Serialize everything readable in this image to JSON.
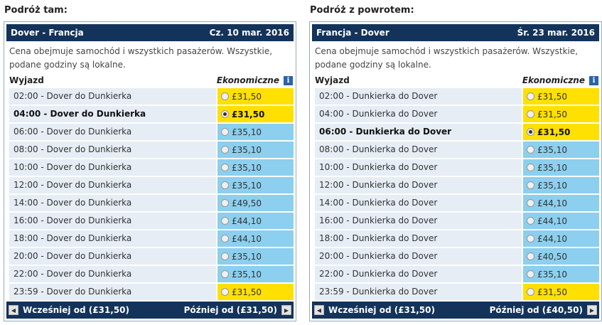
{
  "outbound": {
    "section_title": "Podróż tam:",
    "route": "Dover - Francja",
    "date": "Cz. 10 mar. 2016",
    "note": "Cena obejmuje samochód i wszystkich pasażerów. Wszystkie, podane godziny są lokalne.",
    "col_departure": "Wyjazd",
    "col_class": "Ekonomiczne",
    "info_icon": "i",
    "rows": [
      {
        "label": "02:00 - Dover do Dunkierka",
        "price": "£31,50",
        "cheap": true,
        "selected": false
      },
      {
        "label": "04:00 - Dover do Dunkierka",
        "price": "£31,50",
        "cheap": true,
        "selected": true
      },
      {
        "label": "06:00 - Dover do Dunkierka",
        "price": "£35,10",
        "cheap": false,
        "selected": false
      },
      {
        "label": "08:00 - Dover do Dunkierka",
        "price": "£35,10",
        "cheap": false,
        "selected": false
      },
      {
        "label": "10:00 - Dover do Dunkierka",
        "price": "£35,10",
        "cheap": false,
        "selected": false
      },
      {
        "label": "12:00 - Dover do Dunkierka",
        "price": "£35,10",
        "cheap": false,
        "selected": false
      },
      {
        "label": "14:00 - Dover do Dunkierka",
        "price": "£49,50",
        "cheap": false,
        "selected": false
      },
      {
        "label": "16:00 - Dover do Dunkierka",
        "price": "£44,10",
        "cheap": false,
        "selected": false
      },
      {
        "label": "18:00 - Dover do Dunkierka",
        "price": "£44,10",
        "cheap": false,
        "selected": false
      },
      {
        "label": "20:00 - Dover do Dunkierka",
        "price": "£35,10",
        "cheap": false,
        "selected": false
      },
      {
        "label": "22:00 - Dover do Dunkierka",
        "price": "£35,10",
        "cheap": false,
        "selected": false
      },
      {
        "label": "23:59 - Dover do Dunkierka",
        "price": "£31,50",
        "cheap": true,
        "selected": false
      }
    ],
    "earlier_label": "Wcześniej od (£31,50)",
    "later_label": "Później od (£31,50)"
  },
  "return": {
    "section_title": "Podróż z powrotem:",
    "route": "Francja - Dover",
    "date": "Śr. 23 mar. 2016",
    "note": "Cena obejmuje samochód i wszystkich pasażerów. Wszystkie, podane godziny są lokalne.",
    "col_departure": "Wyjazd",
    "col_class": "Ekonomiczne",
    "info_icon": "i",
    "rows": [
      {
        "label": "02:00 - Dunkierka do Dover",
        "price": "£31,50",
        "cheap": true,
        "selected": false
      },
      {
        "label": "04:00 - Dunkierka do Dover",
        "price": "£31,50",
        "cheap": true,
        "selected": false
      },
      {
        "label": "06:00 - Dunkierka do Dover",
        "price": "£31,50",
        "cheap": true,
        "selected": true
      },
      {
        "label": "08:00 - Dunkierka do Dover",
        "price": "£35,10",
        "cheap": false,
        "selected": false
      },
      {
        "label": "10:00 - Dunkierka do Dover",
        "price": "£35,10",
        "cheap": false,
        "selected": false
      },
      {
        "label": "12:00 - Dunkierka do Dover",
        "price": "£35,10",
        "cheap": false,
        "selected": false
      },
      {
        "label": "14:00 - Dunkierka do Dover",
        "price": "£44,10",
        "cheap": false,
        "selected": false
      },
      {
        "label": "16:00 - Dunkierka do Dover",
        "price": "£44,10",
        "cheap": false,
        "selected": false
      },
      {
        "label": "18:00 - Dunkierka do Dover",
        "price": "£44,10",
        "cheap": false,
        "selected": false
      },
      {
        "label": "20:00 - Dunkierka do Dover",
        "price": "£40,50",
        "cheap": false,
        "selected": false
      },
      {
        "label": "22:00 - Dunkierka do Dover",
        "price": "£35,10",
        "cheap": false,
        "selected": false
      },
      {
        "label": "23:59 - Dunkierka do Dover",
        "price": "£31,50",
        "cheap": true,
        "selected": false
      }
    ],
    "earlier_label": "Wcześniej od (£31,50)",
    "later_label": "Później od (£40,50)"
  },
  "icons": {
    "prev": "triangle-left-icon",
    "next": "triangle-right-icon",
    "info": "info-icon"
  },
  "colors": {
    "header_bg": "#13335a",
    "cheap_price": "#ffe000",
    "normal_price": "#8ccfee",
    "row_bg": "#e6edf5"
  }
}
